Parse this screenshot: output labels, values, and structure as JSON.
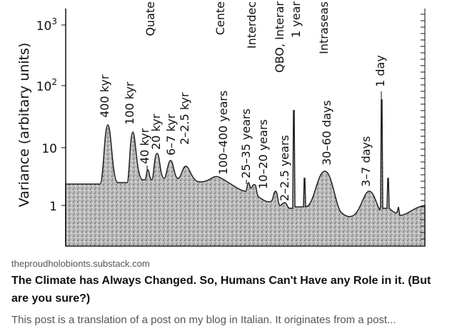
{
  "image": {
    "y_axis_label": "Variance (arbitary units)",
    "y_ticks": [
      {
        "base": "10",
        "exp": "3"
      },
      {
        "base": "10",
        "exp": "2"
      },
      {
        "base": "10",
        "exp": ""
      },
      {
        "base": "1",
        "exp": ""
      }
    ],
    "top_labels": [
      "Quate",
      "Cente",
      "Interdec",
      "QBO, Interar",
      "1 year",
      "Intraseas"
    ],
    "peak_labels": [
      "400 kyr",
      "100 kyr",
      "40 kyr",
      "20 kyr",
      "6–7 kyr",
      "2–2.5 kyr",
      "100–400 years",
      "25–35 years",
      "10–20 years",
      "2–2.5 years",
      "30–60 days",
      "3–7 days",
      "1 day"
    ]
  },
  "link": {
    "domain": "theproudholobionts.substack.com",
    "title": "The Climate has Always Changed. So, Humans Can't Have any Role in it. (But are you sure?)",
    "description": "This post is a translation of a post on my blog in Italian. It originates from a post..."
  }
}
